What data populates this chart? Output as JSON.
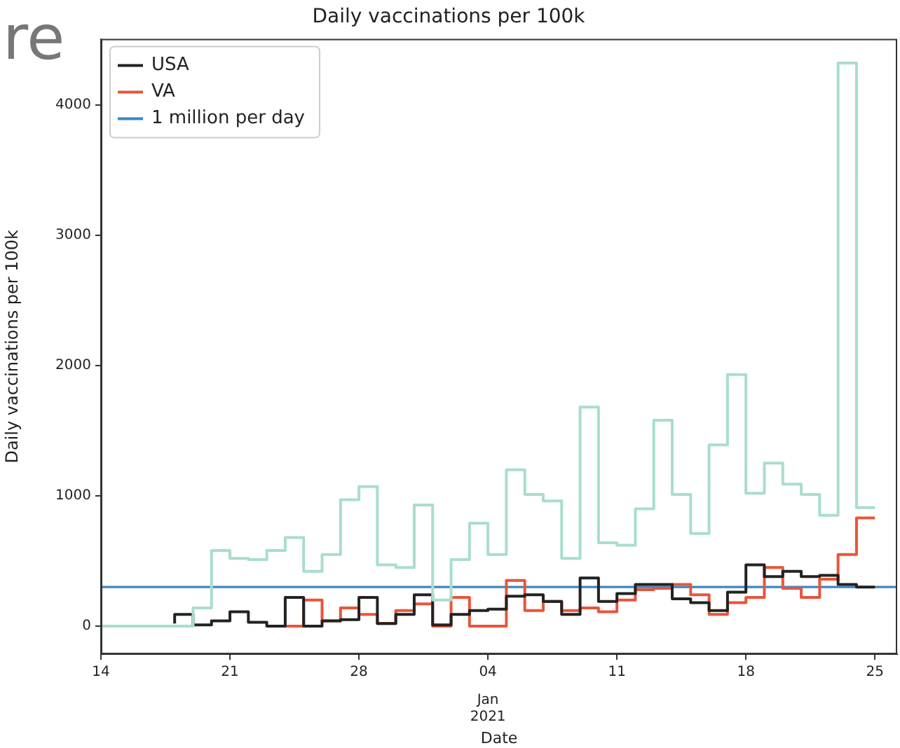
{
  "chart_data": {
    "type": "step",
    "title": "Daily vaccinations per 100k",
    "xlabel": "Date",
    "ylabel": "Daily vaccinations per 100k",
    "annotations": [
      "re",
      "Jan\n2021"
    ],
    "xlim": [
      "2020-12-14",
      "2021-01-26T05:00"
    ],
    "xticks": [
      {
        "value": "2020-12-14",
        "label": "14"
      },
      {
        "value": "2020-12-21",
        "label": "21"
      },
      {
        "value": "2020-12-28",
        "label": "28"
      },
      {
        "value": "2021-01-04",
        "label": "04"
      },
      {
        "value": "2021-01-11",
        "label": "11"
      },
      {
        "value": "2021-01-18",
        "label": "18"
      },
      {
        "value": "2021-01-25",
        "label": "25"
      }
    ],
    "ylim": [
      -215,
      4505
    ],
    "yticks": [
      0,
      1000,
      2000,
      3000,
      4000
    ],
    "grid": false,
    "legend": "top left",
    "series": [
      {
        "color": "#a8ddcf",
        "x": [
          "2020-12-14",
          "2020-12-15",
          "2020-12-16",
          "2020-12-17",
          "2020-12-18",
          "2020-12-19",
          "2020-12-20",
          "2020-12-21",
          "2020-12-22",
          "2020-12-23",
          "2020-12-24",
          "2020-12-25",
          "2020-12-26",
          "2020-12-27",
          "2020-12-28",
          "2020-12-29",
          "2020-12-30",
          "2020-12-31",
          "2021-01-01",
          "2021-01-02",
          "2021-01-03",
          "2021-01-04",
          "2021-01-05",
          "2021-01-06",
          "2021-01-07",
          "2021-01-08",
          "2021-01-09",
          "2021-01-10",
          "2021-01-11",
          "2021-01-12",
          "2021-01-13",
          "2021-01-14",
          "2021-01-15",
          "2021-01-16",
          "2021-01-17",
          "2021-01-18",
          "2021-01-19",
          "2021-01-20",
          "2021-01-21",
          "2021-01-22",
          "2021-01-23",
          "2021-01-24",
          "2021-01-25"
        ],
        "values": [
          0,
          0,
          0,
          0,
          0,
          0,
          140,
          580,
          520,
          510,
          580,
          680,
          420,
          550,
          970,
          1070,
          470,
          450,
          930,
          200,
          510,
          790,
          550,
          1200,
          1010,
          960,
          520,
          1680,
          640,
          620,
          900,
          1580,
          1010,
          710,
          1390,
          1930,
          1020,
          1250,
          1090,
          1010,
          850,
          4320,
          910
        ]
      },
      {
        "name": "USA",
        "color": "#222222",
        "x": [
          "2020-12-18",
          "2020-12-19",
          "2020-12-20",
          "2020-12-21",
          "2020-12-22",
          "2020-12-23",
          "2020-12-24",
          "2020-12-25",
          "2020-12-26",
          "2020-12-27",
          "2020-12-28",
          "2020-12-29",
          "2020-12-30",
          "2020-12-31",
          "2021-01-01",
          "2021-01-02",
          "2021-01-03",
          "2021-01-04",
          "2021-01-05",
          "2021-01-06",
          "2021-01-07",
          "2021-01-08",
          "2021-01-09",
          "2021-01-10",
          "2021-01-11",
          "2021-01-12",
          "2021-01-13",
          "2021-01-14",
          "2021-01-15",
          "2021-01-16",
          "2021-01-17",
          "2021-01-18",
          "2021-01-19",
          "2021-01-20",
          "2021-01-21",
          "2021-01-22",
          "2021-01-23",
          "2021-01-24",
          "2021-01-25"
        ],
        "values": [
          20,
          90,
          10,
          40,
          110,
          30,
          0,
          220,
          0,
          40,
          50,
          220,
          20,
          90,
          240,
          10,
          90,
          120,
          130,
          230,
          240,
          190,
          90,
          370,
          190,
          250,
          320,
          320,
          210,
          180,
          120,
          260,
          470,
          380,
          420,
          380,
          390,
          320,
          300
        ]
      },
      {
        "name": "VA",
        "color": "#e8553a",
        "x": [
          "2020-12-23",
          "2020-12-24",
          "2020-12-25",
          "2020-12-26",
          "2020-12-27",
          "2020-12-28",
          "2020-12-29",
          "2020-12-30",
          "2020-12-31",
          "2021-01-01",
          "2021-01-02",
          "2021-01-03",
          "2021-01-04",
          "2021-01-05",
          "2021-01-06",
          "2021-01-07",
          "2021-01-08",
          "2021-01-09",
          "2021-01-10",
          "2021-01-11",
          "2021-01-12",
          "2021-01-13",
          "2021-01-14",
          "2021-01-15",
          "2021-01-16",
          "2021-01-17",
          "2021-01-18",
          "2021-01-19",
          "2021-01-20",
          "2021-01-21",
          "2021-01-22",
          "2021-01-23",
          "2021-01-24",
          "2021-01-25"
        ],
        "values": [
          0,
          0,
          0,
          200,
          40,
          140,
          90,
          20,
          120,
          170,
          0,
          220,
          0,
          0,
          350,
          120,
          190,
          120,
          140,
          110,
          200,
          280,
          290,
          320,
          240,
          90,
          180,
          220,
          450,
          290,
          220,
          360,
          550,
          830
        ]
      },
      {
        "name": "1 million per day",
        "type": "line",
        "color": "#3a87c0",
        "x": [
          "2020-12-14",
          "2021-01-26T05:00"
        ],
        "values": [
          300,
          300
        ]
      }
    ]
  }
}
